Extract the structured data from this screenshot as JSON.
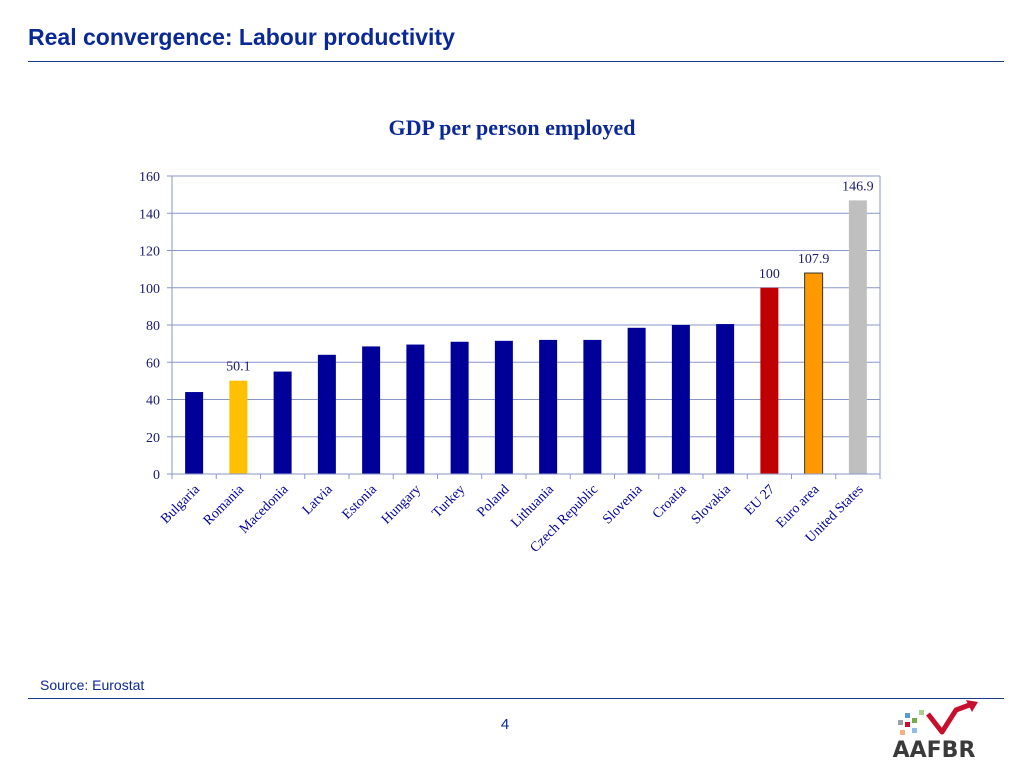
{
  "page": {
    "title": "Real convergence: Labour productivity",
    "source": "Source: Eurostat",
    "page_number": "4",
    "logo_text": "AAFBR"
  },
  "colors": {
    "title": "#0a2896",
    "bar_default": "#000099",
    "bar_romania": "#ffc000",
    "bar_eu27": "#c00000",
    "bar_euro_area": "#ff9900",
    "bar_us": "#bfbfbf",
    "grid": "#8a96c8"
  },
  "chart_data": {
    "type": "bar",
    "title": "GDP per person employed",
    "xlabel": "",
    "ylabel": "",
    "ylim": [
      0,
      160
    ],
    "yticks": [
      0,
      20,
      40,
      60,
      80,
      100,
      120,
      140,
      160
    ],
    "grid": true,
    "categories": [
      "Bulgaria",
      "Romania",
      "Macedonia",
      "Latvia",
      "Estonia",
      "Hungary",
      "Turkey",
      "Poland",
      "Lithuania",
      "Czech Republic",
      "Slovenia",
      "Croatia",
      "Slovakia",
      "EU 27",
      "Euro area",
      "United States"
    ],
    "values": [
      44,
      50.1,
      55,
      64,
      68.5,
      69.5,
      71,
      71.5,
      72,
      72,
      78.5,
      80,
      80.5,
      100,
      107.9,
      146.9
    ],
    "bar_colors": [
      "#000099",
      "#ffc000",
      "#000099",
      "#000099",
      "#000099",
      "#000099",
      "#000099",
      "#000099",
      "#000099",
      "#000099",
      "#000099",
      "#000099",
      "#000099",
      "#c00000",
      "#ff9900",
      "#bfbfbf"
    ],
    "data_labels": [
      "",
      "50.1",
      "",
      "",
      "",
      "",
      "",
      "",
      "",
      "",
      "",
      "",
      "",
      "100",
      "107.9",
      "146.9"
    ]
  }
}
